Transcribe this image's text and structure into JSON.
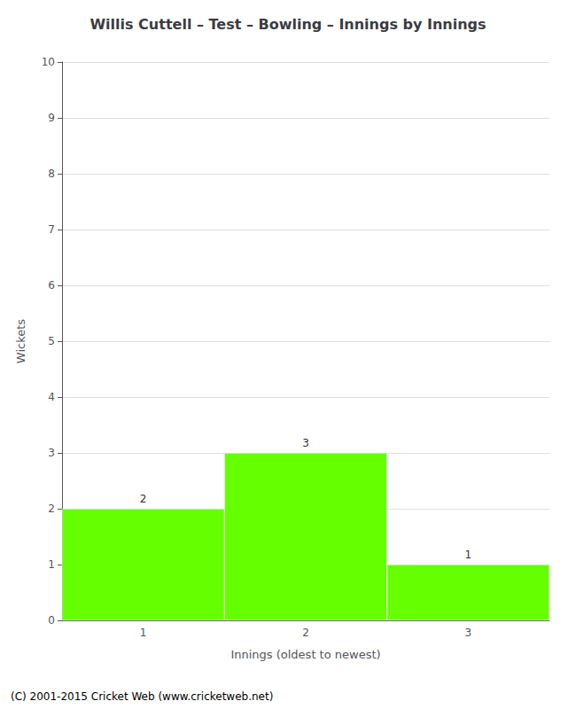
{
  "chart_data": {
    "type": "bar",
    "title": "Willis Cuttell – Test – Bowling – Innings by Innings",
    "x_label": "Innings (oldest to newest)",
    "y_label": "Wickets",
    "categories": [
      1,
      2,
      3
    ],
    "values": [
      2,
      3,
      1
    ],
    "color": "#66ff00",
    "ylim": [
      0,
      10
    ],
    "yticks": [
      0,
      1,
      2,
      3,
      4,
      5,
      6,
      7,
      8,
      9,
      10
    ],
    "grid": true,
    "data_labels": true,
    "annotations": [
      "(C) 2001-2015 Cricket Web (www.cricketweb.net)"
    ]
  }
}
